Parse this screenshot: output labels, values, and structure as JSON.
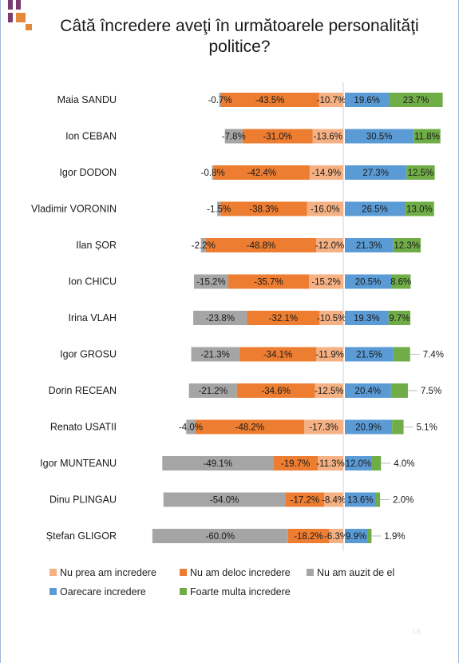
{
  "title": "Câtă încredere aveţi în următoarele personalităţi politice?",
  "page_number": "18",
  "colors": {
    "nu_prea": "#f5b183",
    "nu_deloc": "#ed7d31",
    "nu_auzit": "#a5a5a5",
    "oarecare": "#5b9bd5",
    "foarte": "#70ad47",
    "divider": "#c6d3e6",
    "deco_purple": "#7a3b6e",
    "deco_orange": "#e2893c"
  },
  "legend": [
    {
      "key": "nu_prea",
      "label": "Nu prea am incredere"
    },
    {
      "key": "nu_deloc",
      "label": "Nu am deloc incredere"
    },
    {
      "key": "nu_auzit",
      "label": "Nu am auzit de el"
    },
    {
      "key": "oarecare",
      "label": "Oarecare incredere"
    },
    {
      "key": "foarte",
      "label": "Foarte multa incredere"
    }
  ],
  "chart_data": {
    "type": "bar",
    "orientation": "horizontal-diverging",
    "title": "Câtă încredere aveţi în următoarele personalităţi politice?",
    "categories": [
      "Maia SANDU",
      "Ion CEBAN",
      "Igor DODON",
      "Vladimir VORONIN",
      "Ilan ȘOR",
      "Ion CHICU",
      "Irina VLAH",
      "Igor GROSU",
      "Dorin RECEAN",
      "Renato USATII",
      "Igor MUNTEANU",
      "Dinu PLINGAU",
      "Ștefan GLIGOR"
    ],
    "series": [
      {
        "key": "nu_auzit",
        "name": "Nu am auzit de el",
        "side": "negative",
        "values": [
          -0.7,
          -7.8,
          -0.8,
          -1.5,
          -2.2,
          -15.2,
          -23.8,
          -21.3,
          -21.2,
          -4.0,
          -49.1,
          -54.0,
          -60.0
        ],
        "labels": [
          "-0.7%",
          "-7.8%",
          "-0.8%",
          "-1.5%",
          "-2.2%",
          "-15.2%",
          "-23.8%",
          "-21.3%",
          "-21.2%",
          "-4.0%",
          "-49.1%",
          "-54.0%",
          "-60.0%"
        ]
      },
      {
        "key": "nu_deloc",
        "name": "Nu am deloc incredere",
        "side": "negative",
        "values": [
          -43.5,
          -31.0,
          -42.4,
          -38.3,
          -48.8,
          -35.7,
          -32.1,
          -34.1,
          -34.6,
          -48.2,
          -19.7,
          -17.2,
          -18.2
        ],
        "labels": [
          "-43.5%",
          "-31.0%",
          "-42.4%",
          "-38.3%",
          "-48.8%",
          "-35.7%",
          "-32.1%",
          "-34.1%",
          "-34.6%",
          "-48.2%",
          "-19.7%",
          "-17.2%",
          "-18.2%"
        ]
      },
      {
        "key": "nu_prea",
        "name": "Nu prea am incredere",
        "side": "negative",
        "values": [
          -10.7,
          -13.6,
          -14.9,
          -16.0,
          -12.0,
          -15.2,
          -10.5,
          -11.9,
          -12.5,
          -17.3,
          -11.3,
          -8.4,
          -6.3
        ],
        "labels": [
          "-10.7%",
          "-13.6%",
          "-14.9%",
          "-16.0%",
          "-12.0%",
          "-15.2%",
          "-10.5%",
          "-11.9%",
          "-12.5%",
          "-17.3%",
          "-11.3%",
          "-8.4%",
          "-6.3%"
        ]
      },
      {
        "key": "oarecare",
        "name": "Oarecare incredere",
        "side": "positive",
        "values": [
          19.6,
          30.5,
          27.3,
          26.5,
          21.3,
          20.5,
          19.3,
          21.5,
          20.4,
          20.9,
          12.0,
          13.6,
          9.9
        ],
        "labels": [
          "19.6%",
          "30.5%",
          "27.3%",
          "26.5%",
          "21.3%",
          "20.5%",
          "19.3%",
          "21.5%",
          "20.4%",
          "20.9%",
          "12.0%",
          "13.6%",
          "9.9%"
        ]
      },
      {
        "key": "foarte",
        "name": "Foarte multa incredere",
        "side": "positive",
        "values": [
          23.7,
          11.8,
          12.5,
          13.0,
          12.3,
          8.6,
          9.7,
          7.4,
          7.5,
          5.1,
          4.0,
          2.0,
          1.9
        ],
        "labels": [
          "23.7%",
          "11.8%",
          "12.5%",
          "13.0%",
          "12.3%",
          "8.6%",
          "9.7%",
          "7.4%",
          "7.5%",
          "5.1%",
          "4.0%",
          "2.0%",
          "1.9%"
        ]
      }
    ],
    "grid": false,
    "legend_position": "bottom"
  }
}
